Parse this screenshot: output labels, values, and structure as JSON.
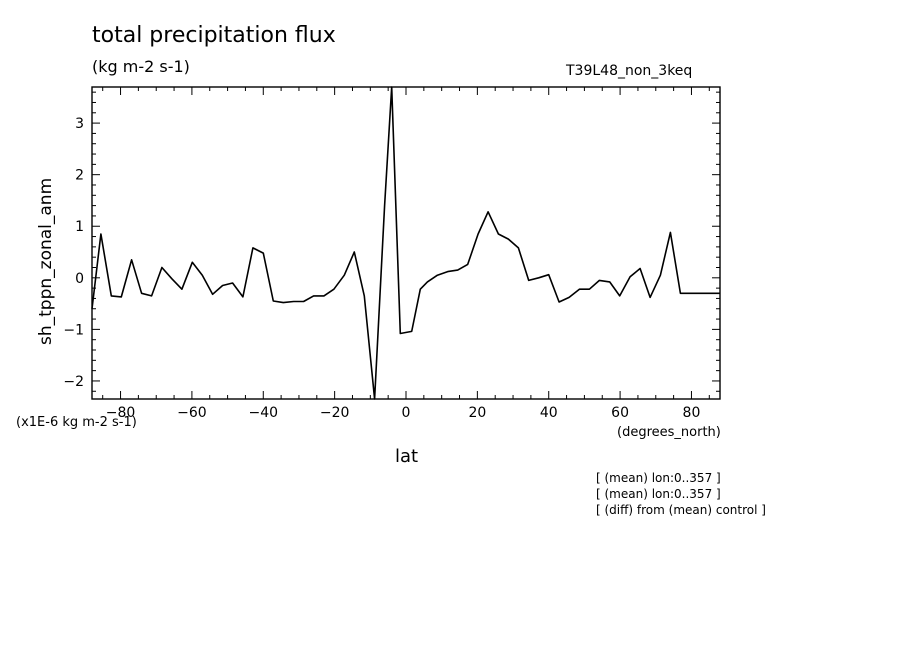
{
  "header": {
    "title": "total precipitation flux",
    "units": "(kg m-2 s-1)",
    "run_label": "T39L48_non_3keq"
  },
  "axes": {
    "y_label": "sh_tppn_zonal_anm",
    "x_label": "lat",
    "x_units": "(degrees_north)",
    "y_scale_note": "(x1E-6 kg m-2 s-1)"
  },
  "notes": [
    "[ (mean) lon:0..357 ]",
    "[ (mean) lon:0..357 ]",
    "[ (diff) from (mean) control ]"
  ],
  "chart_data": {
    "type": "line",
    "title": "total precipitation flux",
    "subtitle": "(kg m-2 s-1)",
    "xlabel": "lat",
    "ylabel": "sh_tppn_zonal_anm",
    "xlim": [
      -88,
      88
    ],
    "ylim": [
      -2.35,
      3.7
    ],
    "x_ticks": [
      -80,
      -60,
      -40,
      -20,
      0,
      20,
      40,
      60,
      80
    ],
    "y_ticks": [
      -2,
      -1,
      0,
      1,
      2,
      3
    ],
    "grid": false,
    "x": [
      -88,
      -85.5,
      -82.6,
      -79.8,
      -76.9,
      -74.1,
      -71.3,
      -68.4,
      -65.6,
      -62.8,
      -59.9,
      -57.1,
      -54.2,
      -51.4,
      -48.6,
      -45.7,
      -42.9,
      -40.0,
      -37.2,
      -34.4,
      -31.5,
      -28.7,
      -25.9,
      -23.0,
      -20.2,
      -17.3,
      -14.5,
      -11.7,
      -8.8,
      -6.0,
      -4.0,
      -1.6,
      1.6,
      4.0,
      6.0,
      8.8,
      11.7,
      14.5,
      17.3,
      20.2,
      23.0,
      25.9,
      28.7,
      31.5,
      34.4,
      37.2,
      40.0,
      42.9,
      45.7,
      48.6,
      51.4,
      54.2,
      57.1,
      59.9,
      62.8,
      65.6,
      68.4,
      71.3,
      74.1,
      76.9,
      79.8,
      82.6,
      85.5,
      88
    ],
    "series": [
      {
        "values": [
          -0.6,
          0.85,
          -0.35,
          -0.37,
          0.35,
          -0.3,
          -0.35,
          0.2,
          -0.02,
          -0.22,
          0.3,
          0.05,
          -0.32,
          -0.15,
          -0.1,
          -0.37,
          0.58,
          0.48,
          -0.45,
          -0.48,
          -0.46,
          -0.46,
          -0.35,
          -0.35,
          -0.22,
          0.05,
          0.5,
          -0.35,
          -2.35,
          1.4,
          3.7,
          -1.08,
          -1.04,
          -0.22,
          -0.08,
          0.05,
          0.12,
          0.15,
          0.26,
          0.85,
          1.28,
          0.85,
          0.75,
          0.58,
          -0.05,
          0.0,
          0.06,
          -0.47,
          -0.38,
          -0.22,
          -0.22,
          -0.05,
          -0.08,
          -0.35,
          0.02,
          0.18,
          -0.38,
          0.05,
          0.88,
          -0.3,
          -0.3,
          -0.3,
          -0.3,
          -0.3
        ]
      }
    ]
  }
}
